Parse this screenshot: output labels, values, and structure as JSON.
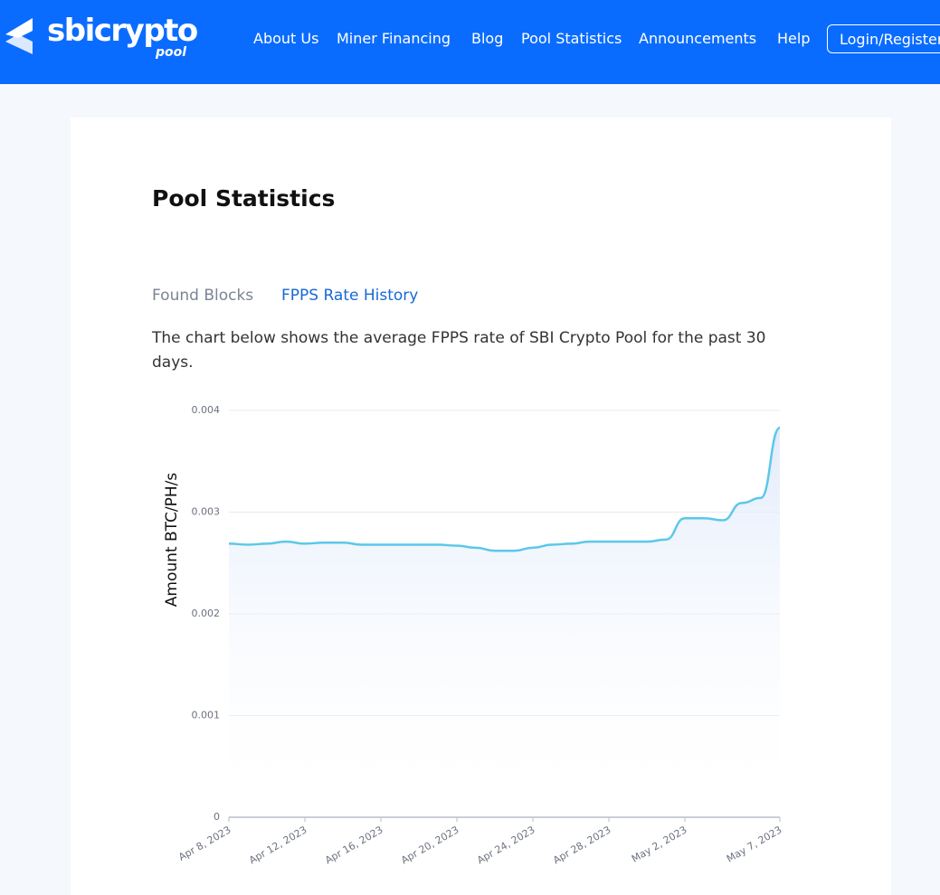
{
  "header": {
    "logo": "sbicrypto",
    "logo_sub": "pool",
    "nav": [
      "About Us",
      "Miner Financing",
      "Blog",
      "Pool Statistics",
      "Announcements",
      "Help"
    ],
    "login": "Login/Register"
  },
  "page": {
    "title": "Pool Statistics",
    "tabs": [
      "Found Blocks",
      "FPPS Rate History"
    ],
    "description": "The chart below shows the average FPPS rate of SBI Crypto Pool for the past 30 days."
  },
  "chart_data": {
    "type": "line",
    "ylabel": "Amount BTC/PH/s",
    "categories": [
      "Apr 8, 2023",
      null,
      null,
      null,
      "Apr 12, 2023",
      null,
      null,
      null,
      "Apr 16, 2023",
      null,
      null,
      null,
      "Apr 20, 2023",
      null,
      null,
      null,
      "Apr 24, 2023",
      null,
      null,
      null,
      "Apr 28, 2023",
      null,
      null,
      null,
      "May 2, 2023",
      null,
      null,
      null,
      null,
      "May 7, 2023"
    ],
    "series": [
      {
        "name": null,
        "color": "#5bc8e8",
        "values": [
          0.00269,
          0.00268,
          0.00269,
          0.00271,
          0.00269,
          0.0027,
          0.0027,
          0.00268,
          0.00268,
          0.00268,
          0.00268,
          0.00268,
          0.00267,
          0.00265,
          0.00262,
          0.00262,
          0.00265,
          0.00268,
          0.00269,
          0.00271,
          0.00271,
          0.00271,
          0.00271,
          0.00273,
          0.00294,
          0.00294,
          0.00292,
          0.00309,
          0.00314,
          0.00383
        ]
      }
    ],
    "ylim": [
      0,
      0.004
    ],
    "yticks": [
      0,
      0.001,
      0.002,
      0.003,
      0.004
    ],
    "grid": true
  }
}
